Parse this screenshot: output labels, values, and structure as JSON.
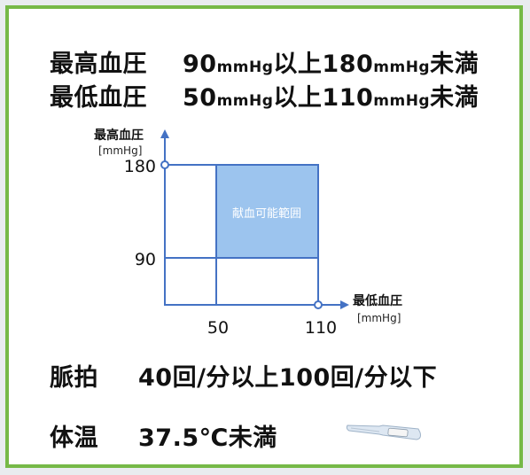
{
  "blood_pressure": {
    "systolic": {
      "label": "最高血圧",
      "min": "90",
      "unit": "mmHg",
      "mid": "以上",
      "max": "180",
      "suffix": "未満"
    },
    "diastolic": {
      "label": "最低血圧",
      "min": "50",
      "unit": "mmHg",
      "mid": "以上",
      "max": "110",
      "suffix": "未満"
    }
  },
  "diagram": {
    "y_axis_label": "最高血圧",
    "y_axis_unit": "[mmHg]",
    "x_axis_label": "最低血圧",
    "x_axis_unit": "[mmHg]",
    "y_ticks": [
      "180",
      "90"
    ],
    "x_ticks": [
      "50",
      "110"
    ],
    "region_label": "献血可能範囲",
    "region_color": "#9cc4ee",
    "axis_color": "#4472c4"
  },
  "pulse": {
    "label": "脈拍",
    "text": "40回/分以上100回/分以下"
  },
  "temperature": {
    "label": "体温",
    "text": "37.5℃未満",
    "icon": "thermometer-icon"
  },
  "colors": {
    "border": "#76b947"
  }
}
